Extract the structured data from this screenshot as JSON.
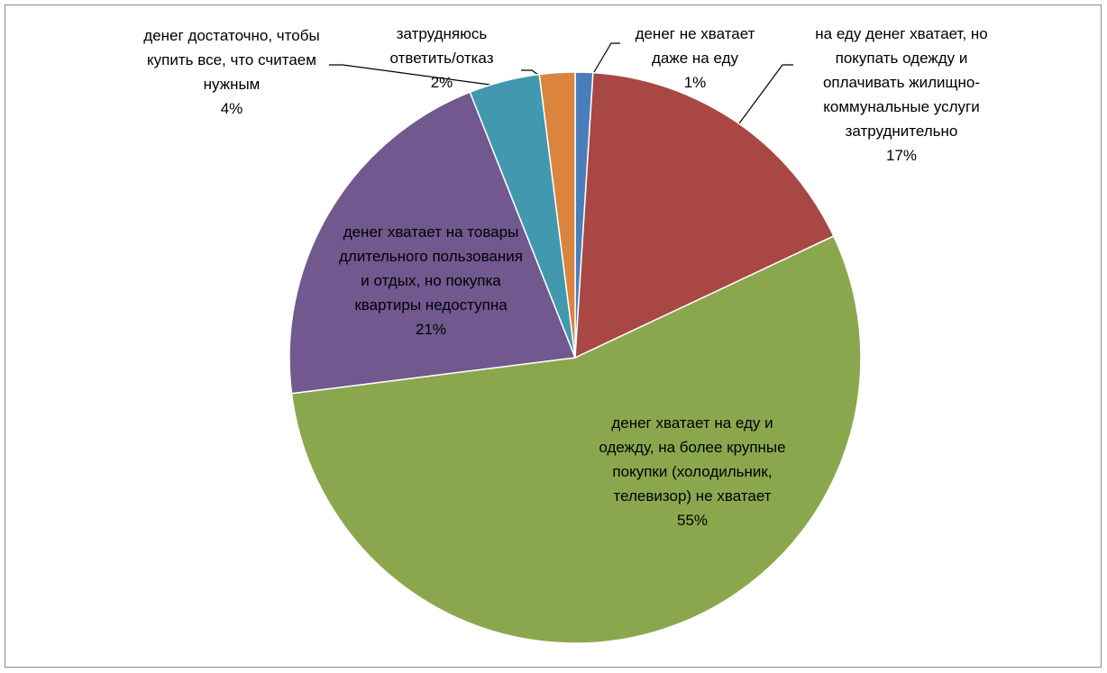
{
  "chart_data": {
    "type": "pie",
    "categories": [
      "денег не хватает даже на еду",
      "на еду денег хватает, но покупать одежду и оплачивать жилищно-коммунальные услуги затруднительно",
      "денег хватает на еду и одежду, на более крупные покупки (холодильник, телевизор) не хватает",
      "денег хватает на товары длительного пользования и отдых, но покупка квартиры недоступна",
      "денег достаточно, чтобы купить все, что считаем нужным",
      "затрудняюсь ответить/отказ"
    ],
    "values": [
      1,
      17,
      55,
      21,
      4,
      2
    ],
    "value_labels": [
      "1%",
      "17%",
      "55%",
      "21%",
      "4%",
      "2%"
    ],
    "colors": [
      "#4a7ebb",
      "#a84744",
      "#8ba74e",
      "#71588f",
      "#4198af",
      "#db843d"
    ]
  }
}
